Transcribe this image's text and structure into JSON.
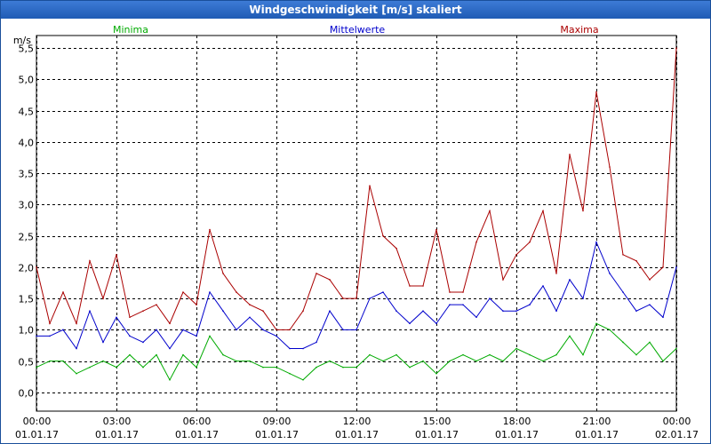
{
  "window": {
    "title": "Windgeschwindigkeit [m/s] skaliert"
  },
  "chart_data": {
    "type": "line",
    "title": "Windgeschwindigkeit [m/s] skaliert",
    "ylabel": "m/s",
    "xlabel": "",
    "ylim": [
      -0.3,
      5.7
    ],
    "xlim": [
      0,
      24
    ],
    "grid": true,
    "yticks": [
      {
        "value": 0.0,
        "label": "0,0"
      },
      {
        "value": 0.5,
        "label": "0,5"
      },
      {
        "value": 1.0,
        "label": "1,0"
      },
      {
        "value": 1.5,
        "label": "1,5"
      },
      {
        "value": 2.0,
        "label": "2,0"
      },
      {
        "value": 2.5,
        "label": "2,5"
      },
      {
        "value": 3.0,
        "label": "3,0"
      },
      {
        "value": 3.5,
        "label": "3,5"
      },
      {
        "value": 4.0,
        "label": "4,0"
      },
      {
        "value": 4.5,
        "label": "4,5"
      },
      {
        "value": 5.0,
        "label": "5,0"
      },
      {
        "value": 5.5,
        "label": "5,5"
      }
    ],
    "xticks": [
      {
        "value": 0,
        "time": "00:00",
        "date": "01.01.17"
      },
      {
        "value": 3,
        "time": "03:00",
        "date": "01.01.17"
      },
      {
        "value": 6,
        "time": "06:00",
        "date": "01.01.17"
      },
      {
        "value": 9,
        "time": "09:00",
        "date": "01.01.17"
      },
      {
        "value": 12,
        "time": "12:00",
        "date": "01.01.17"
      },
      {
        "value": 15,
        "time": "15:00",
        "date": "01.01.17"
      },
      {
        "value": 18,
        "time": "18:00",
        "date": "01.01.17"
      },
      {
        "value": 21,
        "time": "21:00",
        "date": "01.01.17"
      },
      {
        "value": 24,
        "time": "00:00",
        "date": "02.01.17"
      }
    ],
    "x": [
      0,
      0.5,
      1,
      1.5,
      2,
      2.5,
      3,
      3.5,
      4,
      4.5,
      5,
      5.5,
      6,
      6.5,
      7,
      7.5,
      8,
      8.5,
      9,
      9.5,
      10,
      10.5,
      11,
      11.5,
      12,
      12.5,
      13,
      13.5,
      14,
      14.5,
      15,
      15.5,
      16,
      16.5,
      17,
      17.5,
      18,
      18.5,
      19,
      19.5,
      20,
      20.5,
      21,
      21.5,
      22,
      22.5,
      23,
      23.5,
      24
    ],
    "series": [
      {
        "name": "Minima",
        "color": "#00aa00",
        "legend": "left",
        "values": [
          0.4,
          0.5,
          0.5,
          0.3,
          0.4,
          0.5,
          0.4,
          0.6,
          0.4,
          0.6,
          0.2,
          0.6,
          0.4,
          0.9,
          0.6,
          0.5,
          0.5,
          0.4,
          0.4,
          0.3,
          0.2,
          0.4,
          0.5,
          0.4,
          0.4,
          0.6,
          0.5,
          0.6,
          0.4,
          0.5,
          0.3,
          0.5,
          0.6,
          0.5,
          0.6,
          0.5,
          0.7,
          0.6,
          0.5,
          0.6,
          0.9,
          0.6,
          1.1,
          1.0,
          0.8,
          0.6,
          0.8,
          0.5,
          0.7
        ]
      },
      {
        "name": "Mittelwerte",
        "color": "#0000cc",
        "legend": "center",
        "values": [
          0.9,
          0.9,
          1.0,
          0.7,
          1.3,
          0.8,
          1.2,
          0.9,
          0.8,
          1.0,
          0.7,
          1.0,
          0.9,
          1.6,
          1.3,
          1.0,
          1.2,
          1.0,
          0.9,
          0.7,
          0.7,
          0.8,
          1.3,
          1.0,
          1.0,
          1.5,
          1.6,
          1.3,
          1.1,
          1.3,
          1.1,
          1.4,
          1.4,
          1.2,
          1.5,
          1.3,
          1.3,
          1.4,
          1.7,
          1.3,
          1.8,
          1.5,
          2.4,
          1.9,
          1.6,
          1.3,
          1.4,
          1.2,
          2.0
        ]
      },
      {
        "name": "Maxima",
        "color": "#aa0000",
        "legend": "right",
        "values": [
          2.0,
          1.1,
          1.6,
          1.1,
          2.1,
          1.5,
          2.2,
          1.2,
          1.3,
          1.4,
          1.1,
          1.6,
          1.4,
          2.6,
          1.9,
          1.6,
          1.4,
          1.3,
          1.0,
          1.0,
          1.3,
          1.9,
          1.8,
          1.5,
          1.5,
          3.3,
          2.5,
          2.3,
          1.7,
          1.7,
          2.6,
          1.6,
          1.6,
          2.4,
          2.9,
          1.8,
          2.2,
          2.4,
          2.9,
          1.9,
          3.8,
          2.9,
          4.8,
          3.6,
          2.2,
          2.1,
          1.8,
          2.0,
          5.5
        ]
      }
    ]
  }
}
